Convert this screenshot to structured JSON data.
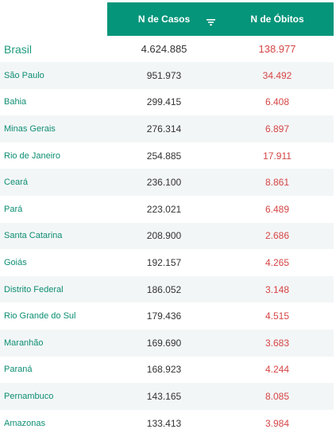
{
  "header": {
    "cases_label": "N de Casos",
    "deaths_label": "N de Óbitos",
    "sort_icon": "sort-descending-icon"
  },
  "colors": {
    "header_bg": "#05957a",
    "state_text": "#0d8e73",
    "deaths_text": "#d64545",
    "stripe": "#f3f6f7"
  },
  "rows": [
    {
      "name": "Brasil",
      "cases": "4.624.885",
      "deaths": "138.977"
    },
    {
      "name": "São Paulo",
      "cases": "951.973",
      "deaths": "34.492"
    },
    {
      "name": "Bahia",
      "cases": "299.415",
      "deaths": "6.408"
    },
    {
      "name": "Minas Gerais",
      "cases": "276.314",
      "deaths": "6.897"
    },
    {
      "name": "Rio de Janeiro",
      "cases": "254.885",
      "deaths": "17.911"
    },
    {
      "name": "Ceará",
      "cases": "236.100",
      "deaths": "8.861"
    },
    {
      "name": "Pará",
      "cases": "223.021",
      "deaths": "6.489"
    },
    {
      "name": "Santa Catarina",
      "cases": "208.900",
      "deaths": "2.686"
    },
    {
      "name": "Goiás",
      "cases": "192.157",
      "deaths": "4.265"
    },
    {
      "name": "Distrito Federal",
      "cases": "186.052",
      "deaths": "3.148"
    },
    {
      "name": "Rio Grande do Sul",
      "cases": "179.436",
      "deaths": "4.515"
    },
    {
      "name": "Maranhão",
      "cases": "169.690",
      "deaths": "3.683"
    },
    {
      "name": "Paraná",
      "cases": "168.923",
      "deaths": "4.244"
    },
    {
      "name": "Pernambuco",
      "cases": "143.165",
      "deaths": "8.085"
    },
    {
      "name": "Amazonas",
      "cases": "133.413",
      "deaths": "3.984"
    }
  ]
}
